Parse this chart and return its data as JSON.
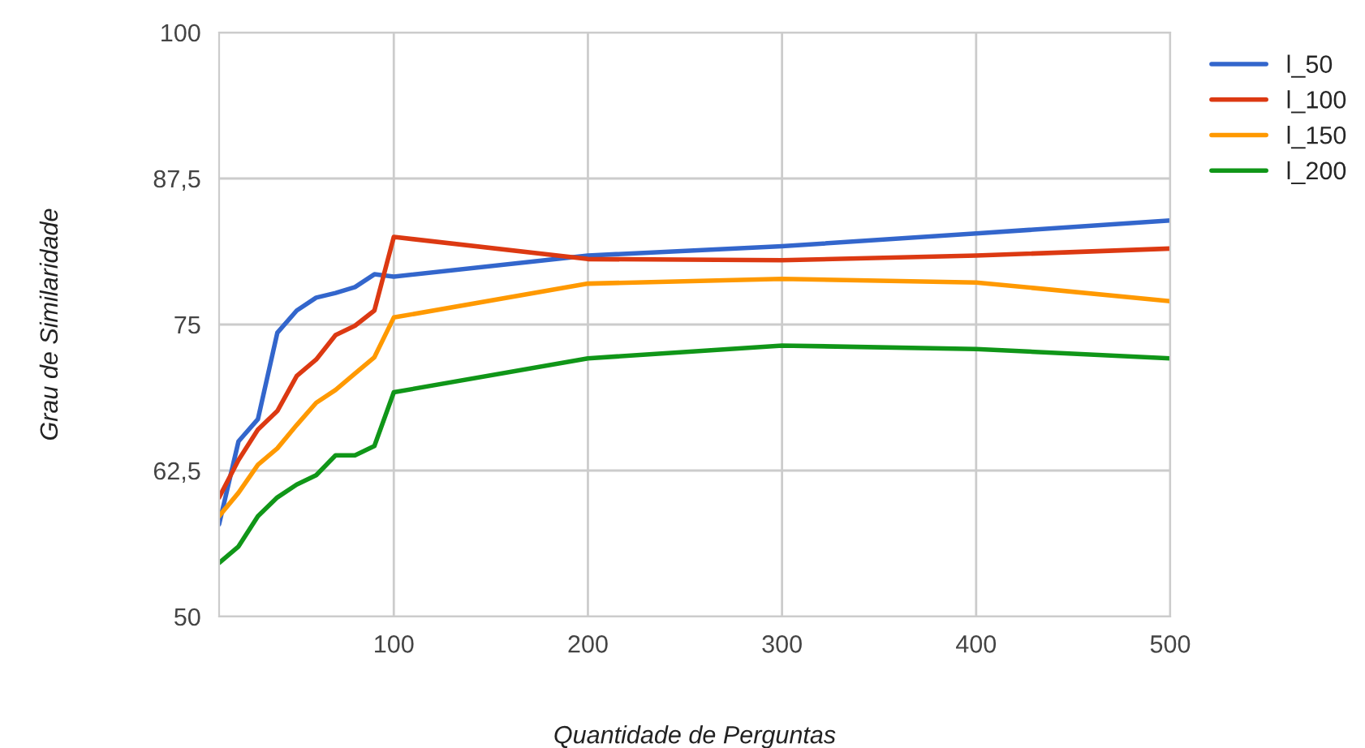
{
  "chart_data": {
    "type": "line",
    "xlabel": "Quantidade de Perguntas",
    "ylabel": "Grau de Similaridade",
    "x": [
      10,
      20,
      30,
      40,
      50,
      60,
      70,
      80,
      90,
      100,
      200,
      300,
      400,
      500
    ],
    "series": [
      {
        "name": "l_50",
        "color": "#3366cc",
        "values": [
          57.9,
          65.0,
          66.9,
          74.3,
          76.2,
          77.3,
          77.7,
          78.2,
          79.3,
          79.1,
          80.9,
          81.7,
          82.8,
          83.9
        ]
      },
      {
        "name": "l_100",
        "color": "#dc3912",
        "values": [
          60.2,
          63.4,
          66.0,
          67.6,
          70.6,
          72.0,
          74.1,
          74.9,
          76.2,
          82.5,
          80.6,
          80.5,
          80.9,
          81.5
        ]
      },
      {
        "name": "l_150",
        "color": "#ff9900",
        "values": [
          58.6,
          60.6,
          63.0,
          64.4,
          66.4,
          68.3,
          69.4,
          70.8,
          72.2,
          75.6,
          78.5,
          78.9,
          78.6,
          77.0
        ]
      },
      {
        "name": "l_200",
        "color": "#109618",
        "values": [
          54.6,
          56.0,
          58.6,
          60.2,
          61.3,
          62.1,
          63.8,
          63.8,
          64.6,
          69.2,
          72.1,
          73.2,
          72.9,
          72.1
        ]
      }
    ],
    "xlim": [
      10,
      500
    ],
    "xticks": [
      100,
      200,
      300,
      400,
      500
    ],
    "ylim": [
      50,
      100
    ],
    "yticks": [
      50,
      {
        "value": 62.5,
        "label": "62,5"
      },
      75,
      {
        "value": 87.5,
        "label": "87,5"
      },
      100
    ],
    "grid": true,
    "legend": "top right",
    "marker": "none",
    "line_style": "solid"
  }
}
